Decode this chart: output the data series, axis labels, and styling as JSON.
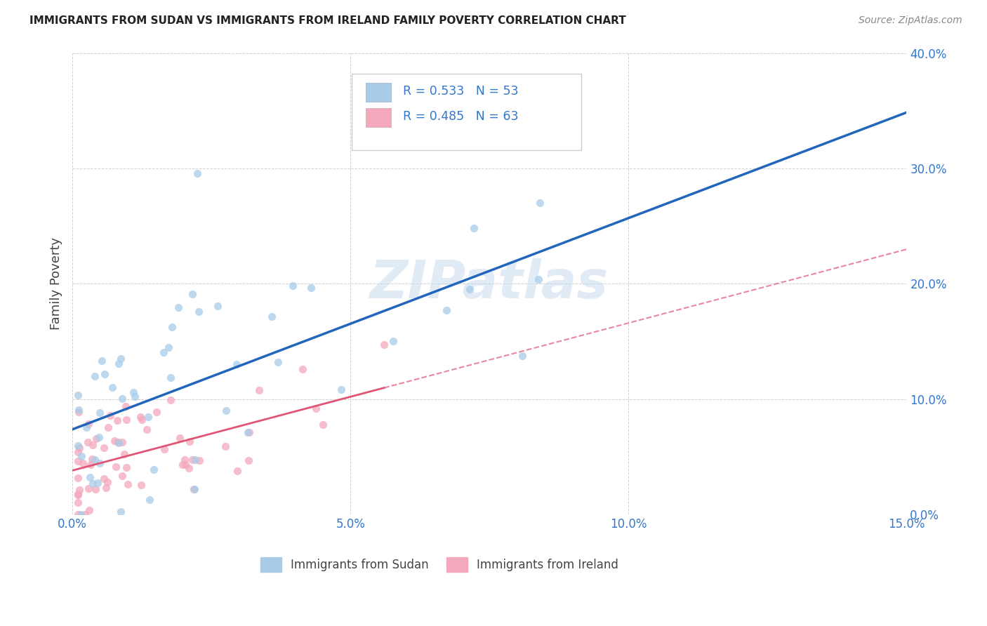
{
  "title": "IMMIGRANTS FROM SUDAN VS IMMIGRANTS FROM IRELAND FAMILY POVERTY CORRELATION CHART",
  "source": "Source: ZipAtlas.com",
  "xlim": [
    0.0,
    0.15
  ],
  "ylim": [
    0.0,
    0.4
  ],
  "ylabel": "Family Poverty",
  "sudan_color": "#a8cce8",
  "ireland_color": "#f4a8bc",
  "sudan_line_color": "#2266bb",
  "ireland_line_color": "#e05575",
  "R_sudan": 0.533,
  "N_sudan": 53,
  "R_ireland": 0.485,
  "N_ireland": 63,
  "watermark": "ZIPatlas",
  "sudan_seed": 42,
  "ireland_seed": 99,
  "legend_color": "#3377cc",
  "tick_color": "#3377cc",
  "grid_color": "#cccccc",
  "title_color": "#222222",
  "source_color": "#888888",
  "ylabel_color": "#444444"
}
